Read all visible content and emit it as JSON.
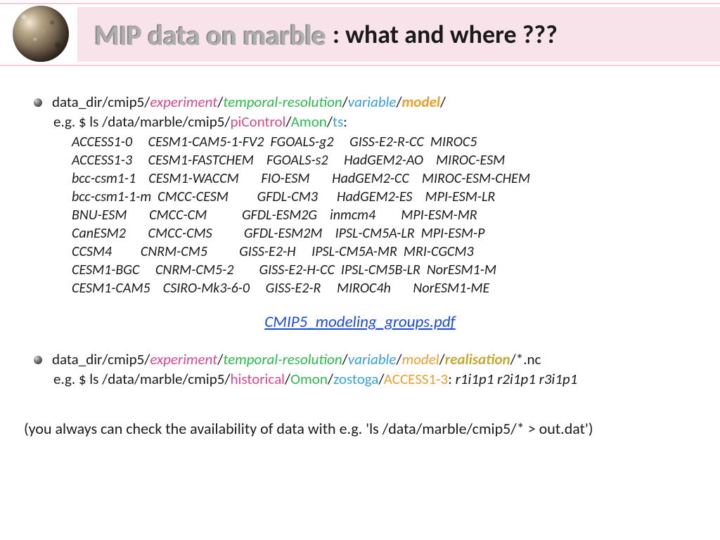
{
  "header": {
    "title_main": "MIP data on marble",
    "title_suffix": ":  what and where ???",
    "band_bg": "#f8e3eb",
    "rule_color": "#f5c9d9"
  },
  "colors": {
    "text": "#1a1a1a",
    "experiment": "#d94a8c",
    "temporal": "#2fb84f",
    "variable": "#3aa0d8",
    "model": "#e8a030",
    "realisation": "#c8a830",
    "link": "#1a4cd4"
  },
  "bullet1": {
    "prefix": "data_dir/cmip5/",
    "experiment": "experiment",
    "temporal": "temporal-resolution",
    "variable": "variable",
    "model": "model",
    "sep": "/",
    "eg_prefix": "e.g. $ ls /data/marble/cmip5/",
    "eg_exp": "piControl",
    "eg_tres": "Amon",
    "eg_var": "ts",
    "eg_suffix": ":"
  },
  "models_block": "ACCESS1-0     CESM1-CAM5-1-FV2  FGOALS-g2     GISS-E2-R-CC  MIROC5\nACCESS1-3     CESM1-FASTCHEM    FGOALS-s2     HadGEM2-AO    MIROC-ESM\nbcc-csm1-1    CESM1-WACCM       FIO-ESM       HadGEM2-CC    MIROC-ESM-CHEM\nbcc-csm1-1-m  CMCC-CESM         GFDL-CM3      HadGEM2-ES    MPI-ESM-LR\nBNU-ESM       CMCC-CM           GFDL-ESM2G    inmcm4        MPI-ESM-MR\nCanESM2       CMCC-CMS          GFDL-ESM2M    IPSL-CM5A-LR  MPI-ESM-P\nCCSM4         CNRM-CM5          GISS-E2-H     IPSL-CM5A-MR  MRI-CGCM3\nCESM1-BGC     CNRM-CM5-2        GISS-E2-H-CC  IPSL-CM5B-LR  NorESM1-M\nCESM1-CAM5    CSIRO-Mk3-6-0     GISS-E2-R     MIROC4h       NorESM1-ME",
  "pdf_link": {
    "label": "CMIP5_modeling_groups.pdf"
  },
  "bullet2": {
    "prefix": "data_dir/cmip5/",
    "experiment": "experiment",
    "temporal": "temporal-resolution",
    "variable": "variable",
    "model": "model",
    "realisation": "realisation",
    "suffix_nc": "/*.nc",
    "eg_prefix": "e.g. $ ls /data/marble/cmip5/",
    "eg_exp": "historical",
    "eg_tres": "Omon",
    "eg_var": "zostoga",
    "eg_model": "ACCESS1-3",
    "eg_colon": ": ",
    "runs": "r1i1p1  r2i1p1  r3i1p1"
  },
  "footer": "(you always can check the availability of data with e.g. 'ls /data/marble/cmip5/* > out.dat')"
}
